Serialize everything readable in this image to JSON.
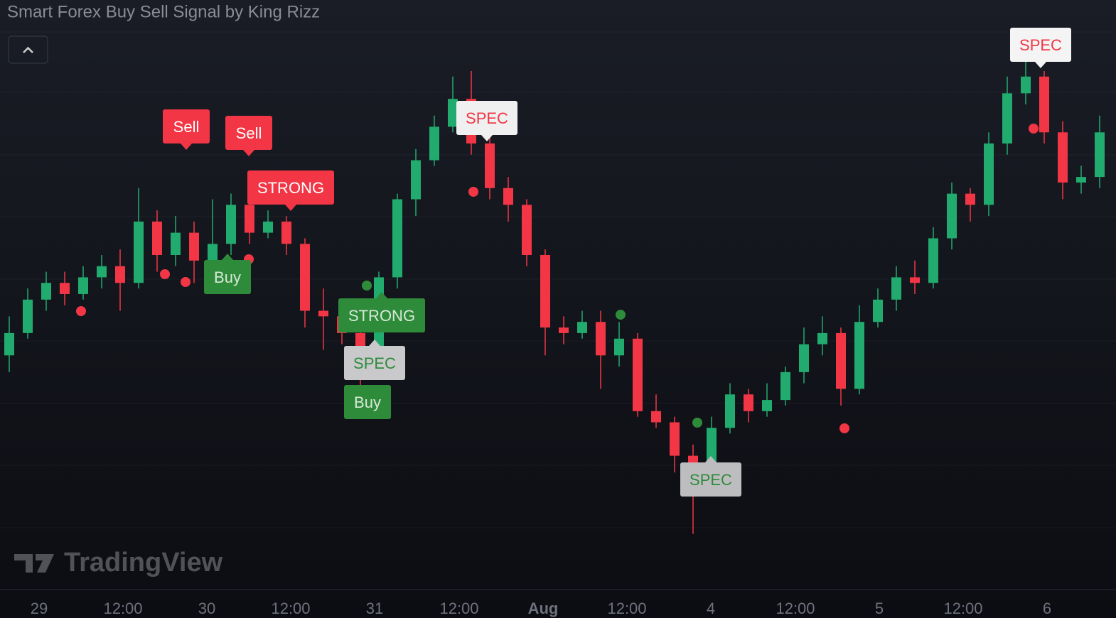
{
  "header": {
    "title": "Smart Forex Buy Sell Signal by King Rizz",
    "watermark": "TradingView"
  },
  "chart_data": {
    "type": "candlestick",
    "ylim": [
      0,
      100
    ],
    "up_color": "#22ab6e",
    "down_color": "#f23645",
    "open": [
      42,
      46,
      52,
      55,
      53,
      56,
      58,
      55,
      66,
      60,
      64,
      59,
      62,
      69,
      64,
      66,
      62,
      50,
      49,
      46,
      42,
      56,
      70,
      77,
      83,
      88,
      80,
      72,
      69,
      60,
      47,
      46,
      48,
      42,
      45,
      32,
      30,
      24,
      20,
      29,
      35,
      32,
      34,
      39,
      44,
      46,
      36,
      48,
      52,
      56,
      55,
      63,
      71,
      69,
      80,
      89,
      92,
      82,
      73,
      74
    ],
    "high": [
      49,
      54,
      57,
      57,
      58,
      60,
      61,
      72,
      68,
      67,
      66,
      70,
      71,
      71,
      68,
      67,
      63,
      54,
      51,
      48,
      57,
      71,
      79,
      85,
      92,
      93,
      82,
      74,
      70,
      61,
      49,
      50,
      50,
      48,
      46,
      35,
      31,
      26,
      31,
      37,
      36,
      37,
      40,
      47,
      49,
      47,
      51,
      54,
      58,
      59,
      65,
      73,
      72,
      82,
      92,
      96,
      93,
      84,
      76,
      85
    ],
    "low": [
      39,
      45,
      50,
      51,
      52,
      54,
      50,
      54,
      57,
      58,
      55,
      56,
      60,
      62,
      63,
      60,
      47,
      43,
      44,
      36,
      40,
      54,
      67,
      76,
      82,
      78,
      70,
      66,
      58,
      42,
      44,
      45,
      36,
      40,
      31,
      29,
      21,
      10,
      18,
      28,
      30,
      31,
      33,
      37,
      42,
      33,
      35,
      47,
      50,
      53,
      54,
      61,
      66,
      67,
      78,
      87,
      80,
      70,
      71,
      72
    ],
    "close": [
      46,
      52,
      55,
      53,
      56,
      58,
      55,
      66,
      60,
      64,
      59,
      62,
      69,
      64,
      66,
      62,
      50,
      49,
      46,
      42,
      56,
      70,
      77,
      83,
      88,
      80,
      72,
      69,
      60,
      47,
      46,
      48,
      42,
      45,
      32,
      30,
      24,
      20,
      29,
      35,
      32,
      34,
      39,
      44,
      46,
      36,
      48,
      52,
      56,
      55,
      63,
      71,
      69,
      80,
      89,
      92,
      82,
      73,
      74,
      82
    ],
    "x_labels": [
      "29",
      "12:00",
      "30",
      "12:00",
      "31",
      "12:00",
      "Aug",
      "12:00",
      "4",
      "12:00",
      "5",
      "12:00",
      "6"
    ],
    "signals": [
      {
        "text": "Sell",
        "bg": "#f23645",
        "fg": "#ffffff"
      },
      {
        "text": "Sell",
        "bg": "#f23645",
        "fg": "#ffffff"
      },
      {
        "text": "STRONG",
        "bg": "#f23645",
        "fg": "#ffffff"
      },
      {
        "text": "Buy",
        "bg": "#2e8b3a",
        "fg": "#d8e8d8"
      },
      {
        "text": "STRONG",
        "bg": "#2e8b3a",
        "fg": "#d8e8d8"
      },
      {
        "text": "SPEC",
        "bg": "#c9c9cc",
        "fg": "#2e8b3a"
      },
      {
        "text": "Buy",
        "bg": "#2e8b3a",
        "fg": "#d8e8d8"
      },
      {
        "text": "SPEC",
        "bg": "#f0f0f0",
        "fg": "#f23645"
      },
      {
        "text": "SPEC",
        "bg": "#bdbdc0",
        "fg": "#2e8b3a"
      },
      {
        "text": "SPEC",
        "bg": "#f4f4f4",
        "fg": "#f23645"
      }
    ]
  }
}
